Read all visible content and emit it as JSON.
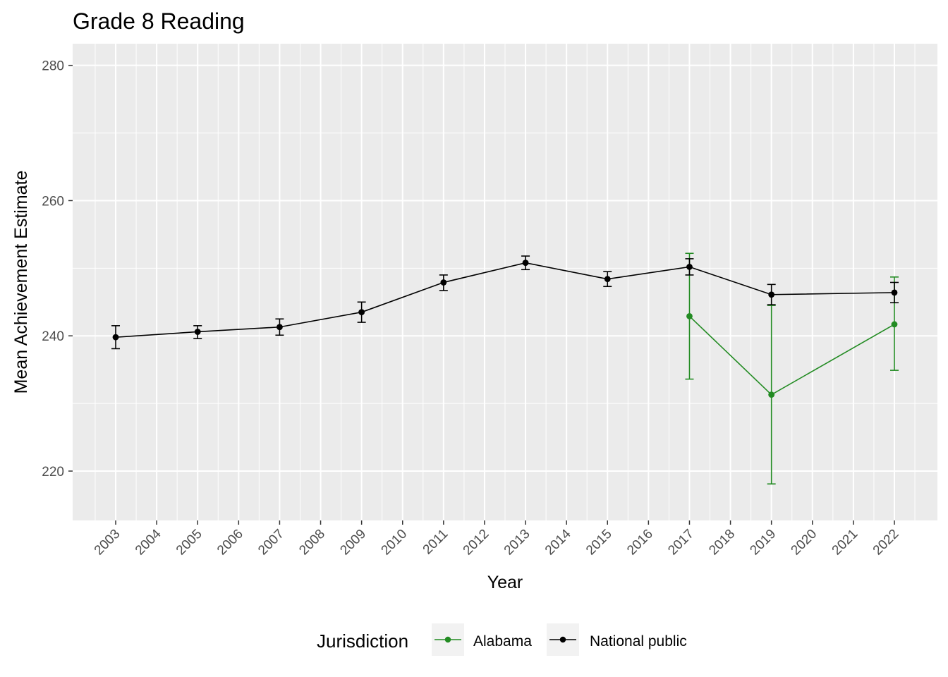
{
  "chart_data": {
    "type": "line",
    "title": "Grade 8 Reading",
    "xlabel": "Year",
    "ylabel": "Mean Achievement Estimate",
    "x_ticks": [
      "2003",
      "2004",
      "2005",
      "2006",
      "2007",
      "2008",
      "2009",
      "2010",
      "2011",
      "2012",
      "2013",
      "2014",
      "2015",
      "2016",
      "2017",
      "2018",
      "2019",
      "2020",
      "2021",
      "2022"
    ],
    "xlim": [
      2001.95,
      2023.05
    ],
    "ylim": [
      212.7,
      283.2
    ],
    "y_ticks": [
      220,
      240,
      260,
      280
    ],
    "grid": true,
    "legend_title": "Jurisdiction",
    "legend_position": "bottom",
    "series": [
      {
        "name": "Alabama",
        "color": "#228B22",
        "points": [
          {
            "year": 2017,
            "value": 242.9,
            "lower": 233.6,
            "upper": 252.2
          },
          {
            "year": 2019,
            "value": 231.3,
            "lower": 218.1,
            "upper": 244.5
          },
          {
            "year": 2022,
            "value": 241.7,
            "lower": 234.9,
            "upper": 248.7
          }
        ]
      },
      {
        "name": "National public",
        "color": "#000000",
        "points": [
          {
            "year": 2003,
            "value": 239.8,
            "lower": 238.1,
            "upper": 241.5
          },
          {
            "year": 2005,
            "value": 240.6,
            "lower": 239.6,
            "upper": 241.5
          },
          {
            "year": 2007,
            "value": 241.3,
            "lower": 240.1,
            "upper": 242.5
          },
          {
            "year": 2009,
            "value": 243.5,
            "lower": 242.0,
            "upper": 245.0
          },
          {
            "year": 2011,
            "value": 247.9,
            "lower": 246.7,
            "upper": 249.0
          },
          {
            "year": 2013,
            "value": 250.8,
            "lower": 249.8,
            "upper": 251.8
          },
          {
            "year": 2015,
            "value": 248.4,
            "lower": 247.3,
            "upper": 249.5
          },
          {
            "year": 2017,
            "value": 250.2,
            "lower": 249.0,
            "upper": 251.4
          },
          {
            "year": 2019,
            "value": 246.1,
            "lower": 244.6,
            "upper": 247.6
          },
          {
            "year": 2022,
            "value": 246.4,
            "lower": 244.9,
            "upper": 247.9
          }
        ]
      }
    ]
  }
}
